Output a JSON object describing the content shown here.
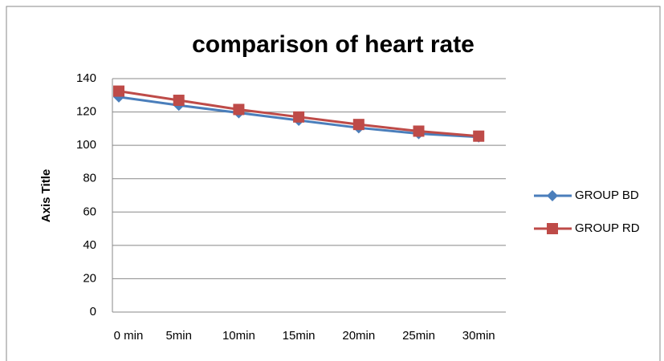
{
  "chart_data": {
    "type": "line",
    "title": "comparison of heart rate",
    "y_label": "Axis Title",
    "categories": [
      "0 min",
      "5min",
      "10min",
      "15min",
      "20min",
      "25min",
      "30min"
    ],
    "series": [
      {
        "name": "GROUP BD",
        "color": "#4a7ebb",
        "marker": "diamond",
        "values": [
          129,
          124,
          119.5,
          115,
          110.5,
          107,
          105
        ]
      },
      {
        "name": "GROUP RD",
        "color": "#be4b48",
        "marker": "square",
        "values": [
          132.5,
          127,
          121.5,
          117,
          112.5,
          108.5,
          105.5
        ]
      }
    ],
    "ylim": [
      0,
      140
    ],
    "yticks": [
      0,
      20,
      40,
      60,
      80,
      100,
      120,
      140
    ],
    "grid": true,
    "legend": "right"
  }
}
